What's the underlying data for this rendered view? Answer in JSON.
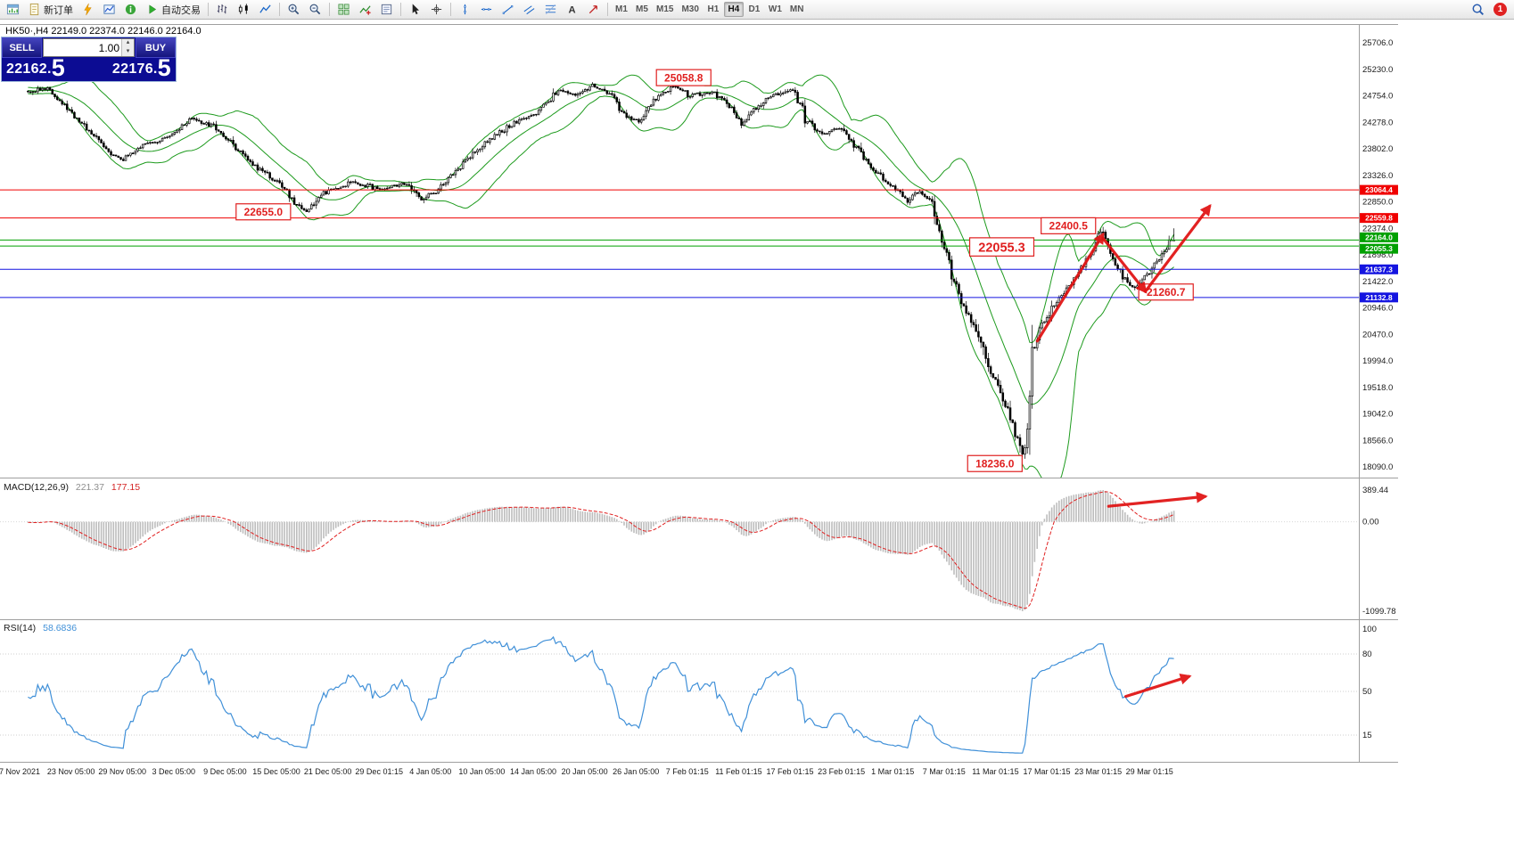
{
  "toolbar": {
    "items": [
      {
        "type": "btn",
        "id": "chart-window",
        "icon": "chart-window"
      },
      {
        "type": "btn",
        "id": "new-order",
        "icon": "doc",
        "label": "新订单"
      },
      {
        "type": "btn",
        "id": "metaeditor",
        "icon": "lightning"
      },
      {
        "type": "btn",
        "id": "market-watch",
        "icon": "mini-chart"
      },
      {
        "type": "btn",
        "id": "data-window",
        "icon": "info"
      },
      {
        "type": "btn",
        "id": "autotrading",
        "icon": "play",
        "label": "自动交易"
      },
      {
        "type": "sep"
      },
      {
        "type": "btn",
        "id": "bar-chart-mode",
        "icon": "bars"
      },
      {
        "type": "btn",
        "id": "candle-chart-mode",
        "icon": "candles"
      },
      {
        "type": "btn",
        "id": "line-chart-mode",
        "icon": "line-chart"
      },
      {
        "type": "sep"
      },
      {
        "type": "btn",
        "id": "zoom-in",
        "icon": "zoom-in"
      },
      {
        "type": "btn",
        "id": "zoom-out",
        "icon": "zoom-out"
      },
      {
        "type": "sep"
      },
      {
        "type": "btn",
        "id": "tile-windows",
        "icon": "tile"
      },
      {
        "type": "btn",
        "id": "indicators-list",
        "icon": "indicators"
      },
      {
        "type": "btn",
        "id": "templates",
        "icon": "templates"
      },
      {
        "type": "sep"
      },
      {
        "type": "btn",
        "id": "cursor-tool",
        "icon": "cursor"
      },
      {
        "type": "btn",
        "id": "crosshair-tool",
        "icon": "crosshair"
      },
      {
        "type": "sep"
      },
      {
        "type": "btn",
        "id": "vertical-line-tool",
        "icon": "vline"
      },
      {
        "type": "btn",
        "id": "horizontal-line-tool",
        "icon": "hline"
      },
      {
        "type": "btn",
        "id": "trendline-tool",
        "icon": "trendline"
      },
      {
        "type": "btn",
        "id": "channel-tool",
        "icon": "channel"
      },
      {
        "type": "btn",
        "id": "fibonacci-tool",
        "icon": "fibo"
      },
      {
        "type": "btn",
        "id": "text-tool",
        "icon": "text"
      },
      {
        "type": "btn",
        "id": "arrows-tool",
        "icon": "arrows"
      },
      {
        "type": "sep"
      },
      {
        "type": "tf"
      },
      {
        "type": "spacer"
      },
      {
        "type": "btn",
        "id": "search",
        "icon": "search"
      },
      {
        "type": "badge"
      }
    ],
    "timeframes": [
      "M1",
      "M5",
      "M15",
      "M30",
      "H1",
      "H4",
      "D1",
      "W1",
      "MN"
    ],
    "active_timeframe": "H4",
    "notification_count": "1"
  },
  "trade_panel": {
    "sell_label": "SELL",
    "buy_label": "BUY",
    "volume": "1.00",
    "spin_up": "▴",
    "spin_down": "▾",
    "sell_price": "22162.5",
    "buy_price": "22176.5",
    "sell_price_main": "22162.",
    "sell_price_big": "5",
    "buy_price_main": "22176.",
    "buy_price_big": "5"
  },
  "chart_header": {
    "title": "HK50·,H4  22149.0 22374.0 22146.0 22164.0"
  },
  "chart_data": {
    "type": "candlestick",
    "symbol": "HK50",
    "timeframe": "H4",
    "last_candle": {
      "open": 22149.0,
      "high": 22374.0,
      "low": 22146.0,
      "close": 22164.0
    },
    "candle_count": 470,
    "y_axis": {
      "min": 18090.0,
      "max": 25706.0,
      "ticks": [
        "25706.0",
        "25230.0",
        "24754.0",
        "24278.0",
        "23802.0",
        "23326.0",
        "22850.0",
        "22374.0",
        "21898.0",
        "21422.0",
        "20946.0",
        "20470.0",
        "19994.0",
        "19518.0",
        "19042.0",
        "18566.0",
        "18090.0"
      ]
    },
    "price_path_anchors": [
      [
        0.0,
        24850
      ],
      [
        0.02,
        24880
      ],
      [
        0.045,
        24350
      ],
      [
        0.075,
        23720
      ],
      [
        0.085,
        23600
      ],
      [
        0.105,
        23900
      ],
      [
        0.125,
        24000
      ],
      [
        0.145,
        24330
      ],
      [
        0.165,
        24200
      ],
      [
        0.18,
        23900
      ],
      [
        0.2,
        23500
      ],
      [
        0.225,
        23120
      ],
      [
        0.235,
        22830
      ],
      [
        0.245,
        22690
      ],
      [
        0.26,
        23000
      ],
      [
        0.285,
        23200
      ],
      [
        0.31,
        23080
      ],
      [
        0.33,
        23180
      ],
      [
        0.345,
        22900
      ],
      [
        0.36,
        23060
      ],
      [
        0.375,
        23400
      ],
      [
        0.4,
        23900
      ],
      [
        0.425,
        24250
      ],
      [
        0.445,
        24420
      ],
      [
        0.465,
        24850
      ],
      [
        0.48,
        24780
      ],
      [
        0.495,
        24940
      ],
      [
        0.51,
        24780
      ],
      [
        0.525,
        24350
      ],
      [
        0.535,
        24280
      ],
      [
        0.55,
        24700
      ],
      [
        0.565,
        24930
      ],
      [
        0.58,
        24760
      ],
      [
        0.6,
        24820
      ],
      [
        0.615,
        24560
      ],
      [
        0.625,
        24260
      ],
      [
        0.64,
        24600
      ],
      [
        0.655,
        24780
      ],
      [
        0.67,
        24880
      ],
      [
        0.68,
        24380
      ],
      [
        0.695,
        24060
      ],
      [
        0.71,
        24160
      ],
      [
        0.725,
        23820
      ],
      [
        0.74,
        23420
      ],
      [
        0.755,
        23150
      ],
      [
        0.77,
        22870
      ],
      [
        0.78,
        23060
      ],
      [
        0.79,
        22870
      ],
      [
        0.798,
        22300
      ],
      [
        0.806,
        21700
      ],
      [
        0.815,
        21150
      ],
      [
        0.827,
        20600
      ],
      [
        0.838,
        20000
      ],
      [
        0.85,
        19470
      ],
      [
        0.862,
        18840
      ],
      [
        0.869,
        18330
      ],
      [
        0.873,
        18460
      ],
      [
        0.877,
        19980
      ],
      [
        0.886,
        20620
      ],
      [
        0.896,
        20960
      ],
      [
        0.908,
        21260
      ],
      [
        0.92,
        21620
      ],
      [
        0.931,
        21960
      ],
      [
        0.939,
        22380
      ],
      [
        0.947,
        21920
      ],
      [
        0.956,
        21560
      ],
      [
        0.966,
        21300
      ],
      [
        0.978,
        21520
      ],
      [
        0.986,
        21760
      ],
      [
        1.0,
        22164
      ]
    ],
    "forced_points": [
      {
        "f": 0.565,
        "type": "high",
        "price": 25058.8
      },
      {
        "f": 0.869,
        "type": "low",
        "price": 18236.0
      },
      {
        "f": 0.939,
        "type": "high",
        "price": 22400.5
      },
      {
        "f": 0.966,
        "type": "low",
        "price": 21260.7
      },
      {
        "f": 0.245,
        "type": "low",
        "price": 22655.0
      }
    ],
    "bollinger": {
      "period": 20,
      "deviation": 2
    },
    "horizontal_lines": [
      {
        "price": 23064.4,
        "label": "23064.4",
        "color": "#f00000",
        "tag_dy": 0
      },
      {
        "price": 22559.8,
        "label": "22559.8",
        "color": "#f00000",
        "tag_dy": 0
      },
      {
        "price": 22164.0,
        "label": "22164.0",
        "color": "#00a000",
        "tag_dy": -3
      },
      {
        "price": 22055.3,
        "label": "22055.3",
        "color": "#00a000",
        "tag_dy": 3
      },
      {
        "price": 21637.3,
        "label": "21637.3",
        "color": "#1414e0",
        "tag_dy": 0
      },
      {
        "price": 21132.8,
        "label": "21132.8",
        "color": "#1414e0",
        "tag_dy": 0
      }
    ],
    "annotations": [
      {
        "text": "25058.8",
        "f": 0.572,
        "price": 25080,
        "fs": 12
      },
      {
        "text": "22655.0",
        "f": 0.206,
        "price": 22670,
        "fs": 12
      },
      {
        "text": "22400.5",
        "f": 0.907,
        "price": 22420,
        "fs": 12
      },
      {
        "text": "22055.3",
        "f": 0.849,
        "price": 22040,
        "fs": 14.5
      },
      {
        "text": "21260.7",
        "f": 0.992,
        "price": 21230,
        "fs": 12
      },
      {
        "text": "18236.0",
        "f": 0.843,
        "price": 18150,
        "fs": 12
      }
    ],
    "arrows": [
      {
        "space": "price",
        "from": [
          0.88,
          20350
        ],
        "to": [
          0.937,
          22260
        ]
      },
      {
        "space": "price",
        "from": [
          0.937,
          22200
        ],
        "to": [
          0.974,
          21240
        ]
      },
      {
        "space": "price",
        "from": [
          0.974,
          21240
        ],
        "to": [
          1.03,
          22770
        ]
      },
      {
        "space": "macd",
        "from": [
          0.942,
          190
        ],
        "to": [
          1.026,
          310
        ]
      },
      {
        "space": "rsi",
        "from": [
          0.957,
          46
        ],
        "to": [
          1.012,
          62
        ]
      }
    ],
    "indicators": {
      "macd": {
        "name": "MACD(12,26,9)",
        "values": [
          "221.37",
          "177.15"
        ],
        "axis_labels": [
          "389.44",
          "0.00",
          "-1099.78"
        ],
        "axis_values": [
          389.44,
          0,
          -1099.78
        ]
      },
      "rsi": {
        "name": "RSI(14)",
        "value": "58.6836",
        "axis_labels": [
          "100",
          "80",
          "50",
          "15"
        ],
        "axis_values": [
          100,
          80,
          50,
          15
        ],
        "level_lines": [
          80,
          50,
          15
        ]
      }
    },
    "time_labels": [
      "7 Nov 2021",
      "23 Nov 05:00",
      "29 Nov 05:00",
      "3 Dec 05:00",
      "9 Dec 05:00",
      "15 Dec 05:00",
      "21 Dec 05:00",
      "29 Dec 01:15",
      "4 Jan 05:00",
      "10 Jan 05:00",
      "14 Jan 05:00",
      "20 Jan 05:00",
      "26 Jan 05:00",
      "7 Feb 01:15",
      "11 Feb 01:15",
      "17 Feb 01:15",
      "23 Feb 01:15",
      "1 Mar 01:15",
      "7 Mar 01:15",
      "11 Mar 01:15",
      "17 Mar 01:15",
      "23 Mar 01:15",
      "29 Mar 01:15"
    ],
    "colors": {
      "bull": "#ffffff",
      "bear": "#000000",
      "wick": "#000000",
      "band": "#1e9b1e",
      "macd_hist": "#bdbdbd",
      "macd_signal": "#e02020",
      "rsi": "#4090d8",
      "arrow": "#e01212",
      "annotation": "#e02020",
      "axis_text": "#1a1a1a"
    }
  }
}
